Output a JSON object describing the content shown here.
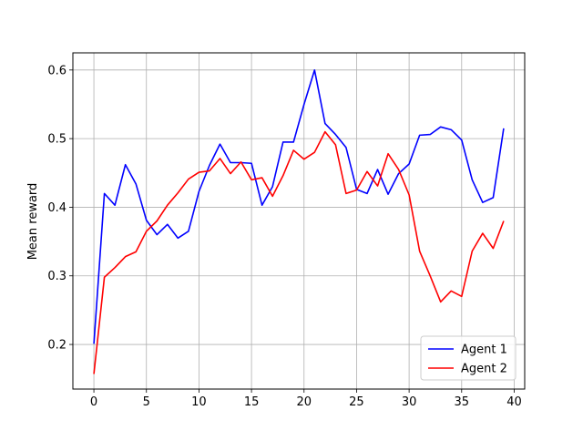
{
  "chart_data": {
    "type": "line",
    "title": "",
    "xlabel": "",
    "ylabel": "Mean reward",
    "xlim": [
      -2,
      41
    ],
    "ylim": [
      0.135,
      0.625
    ],
    "xticks": [
      0,
      5,
      10,
      15,
      20,
      25,
      30,
      35,
      40
    ],
    "xtick_labels": [
      "0",
      "5",
      "10",
      "15",
      "20",
      "25",
      "30",
      "35",
      "40"
    ],
    "yticks": [
      0.2,
      0.3,
      0.4,
      0.5,
      0.6
    ],
    "ytick_labels": [
      "0.2",
      "0.3",
      "0.4",
      "0.5",
      "0.6"
    ],
    "grid": true,
    "legend_position": "lower-right",
    "x": [
      0,
      1,
      2,
      3,
      4,
      5,
      6,
      7,
      8,
      9,
      10,
      11,
      12,
      13,
      14,
      15,
      16,
      17,
      18,
      19,
      20,
      21,
      22,
      23,
      24,
      25,
      26,
      27,
      28,
      29,
      30,
      31,
      32,
      33,
      34,
      35,
      36,
      37,
      38,
      39
    ],
    "series": [
      {
        "name": "Agent 1",
        "color": "#0000ff",
        "values": [
          0.201,
          0.42,
          0.403,
          0.462,
          0.434,
          0.381,
          0.36,
          0.375,
          0.355,
          0.365,
          0.423,
          0.461,
          0.492,
          0.465,
          0.465,
          0.464,
          0.403,
          0.43,
          0.495,
          0.495,
          0.55,
          0.6,
          0.522,
          0.506,
          0.487,
          0.426,
          0.42,
          0.455,
          0.419,
          0.449,
          0.463,
          0.505,
          0.506,
          0.517,
          0.513,
          0.498,
          0.44,
          0.407,
          0.414,
          0.515
        ]
      },
      {
        "name": "Agent 2",
        "color": "#ff0000",
        "values": [
          0.157,
          0.298,
          0.312,
          0.328,
          0.335,
          0.365,
          0.38,
          0.403,
          0.421,
          0.441,
          0.451,
          0.453,
          0.471,
          0.449,
          0.466,
          0.44,
          0.443,
          0.416,
          0.446,
          0.483,
          0.47,
          0.48,
          0.51,
          0.491,
          0.42,
          0.425,
          0.452,
          0.431,
          0.478,
          0.455,
          0.418,
          0.336,
          0.3,
          0.262,
          0.278,
          0.27,
          0.336,
          0.362,
          0.34,
          0.38
        ]
      }
    ]
  }
}
